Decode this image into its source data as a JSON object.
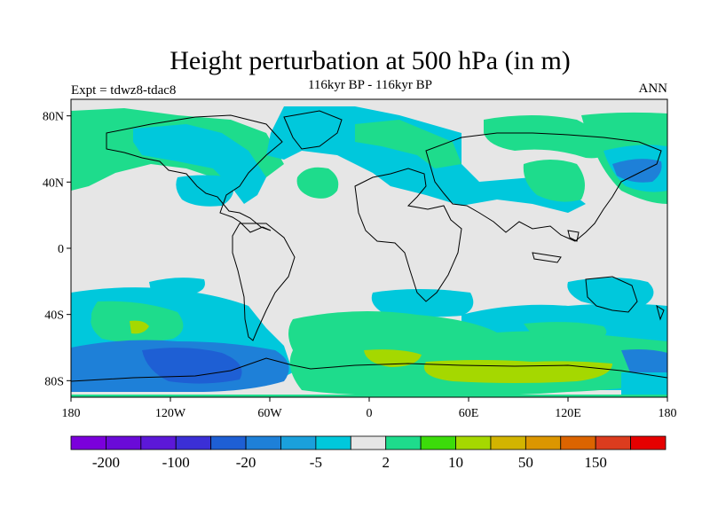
{
  "header": {
    "title": "Height perturbation at 500 hPa (in m)",
    "subtitle": "116kyr BP - 116kyr BP",
    "left_label": "Expt = tdwz8-tdac8",
    "right_label": "ANN"
  },
  "map": {
    "projection": "cylindrical-equidistant",
    "background_color": "#e6e6e6",
    "coastline_color": "#000000",
    "lon_ticks": [
      "180",
      "120W",
      "60W",
      "0",
      "60E",
      "120E",
      "180"
    ],
    "lat_ticks": [
      "80N",
      "40N",
      "0",
      "40S",
      "80S"
    ]
  },
  "colorbar": {
    "colors": [
      "#7b00dc",
      "#6a0ad8",
      "#5c18d8",
      "#3b2fd6",
      "#1e5fd4",
      "#1e80d8",
      "#1aa0dc",
      "#00c8dc",
      "#e6e6e6",
      "#1edc8c",
      "#3cdc0a",
      "#a5d800",
      "#d2b400",
      "#dc9600",
      "#dc6400",
      "#dc3c1e",
      "#e60000"
    ],
    "labels": [
      "-200",
      "-100",
      "-20",
      "-5",
      "2",
      "10",
      "50",
      "150"
    ]
  }
}
